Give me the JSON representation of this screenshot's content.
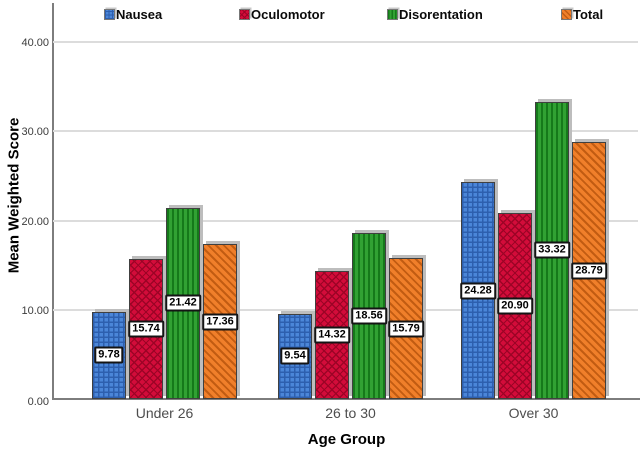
{
  "chart_data": {
    "type": "bar",
    "title": "",
    "xlabel": "Age Group",
    "ylabel": "Mean Weighted Score",
    "categories": [
      "Under 26",
      "26 to 30",
      "Over 30"
    ],
    "series": [
      {
        "name": "Nausea",
        "pattern": "crosshatch",
        "base_color": "#4b86d8",
        "line_color": "#2d5fae",
        "values": [
          9.78,
          9.54,
          24.28
        ],
        "labels": [
          "9.78",
          "9.54",
          "24.28"
        ]
      },
      {
        "name": "Oculomotor",
        "pattern": "diamond",
        "base_color": "#d30c3a",
        "line_color": "#9c0426",
        "values": [
          15.74,
          14.32,
          20.9
        ],
        "labels": [
          "15.74",
          "14.32",
          "20.90"
        ]
      },
      {
        "name": "Disorentation",
        "pattern": "vertical",
        "base_color": "#31a133",
        "line_color": "#15791a",
        "values": [
          21.42,
          18.56,
          33.32
        ],
        "labels": [
          "21.42",
          "18.56",
          "33.32"
        ]
      },
      {
        "name": "Total",
        "pattern": "diagonal",
        "base_color": "#f07f2a",
        "line_color": "#c25c12",
        "values": [
          17.36,
          15.79,
          28.79
        ],
        "labels": [
          "17.36",
          "15.79",
          "28.79"
        ]
      }
    ],
    "yticks": [
      "0.00",
      "10.00",
      "20.00",
      "30.00",
      "40.00"
    ],
    "ytick_values": [
      0,
      10,
      20,
      30,
      40
    ],
    "ylim": [
      0,
      44.4
    ],
    "grid": "horizontal",
    "legend_position": "top",
    "colors": {
      "gridline": "#dcdcdc",
      "axis": "#7d7d7d",
      "bar_shadow": "#bdbdbd",
      "tick_text": "#3c3c3c",
      "category_text": "#4d4d4d",
      "label_box_bg": "#ffffff",
      "label_box_border": "#141414"
    }
  }
}
